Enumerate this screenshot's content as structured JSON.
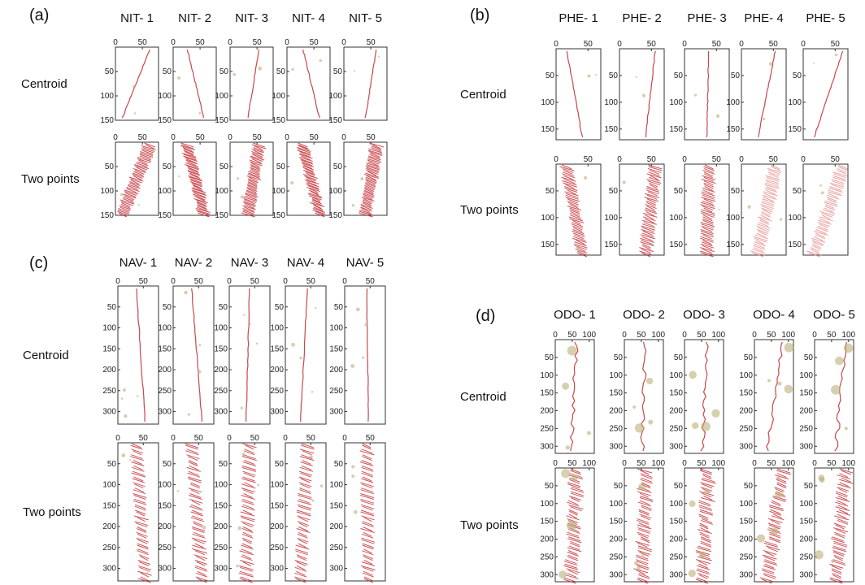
{
  "groups": [
    {
      "id": "a",
      "label": "(a)",
      "columns": [
        "NIT- 1",
        "NIT- 2",
        "NIT- 3",
        "NIT- 4",
        "NIT- 5"
      ],
      "rows": [
        "Centroid",
        "Two points"
      ],
      "x_ticks": [
        "0",
        "50"
      ],
      "y_ticks": [
        "50",
        "100",
        "150"
      ]
    },
    {
      "id": "b",
      "label": "(b)",
      "columns": [
        "PHE- 1",
        "PHE- 2",
        "PHE- 3",
        "PHE- 4",
        "PHE- 5"
      ],
      "rows": [
        "Centroid",
        "Two points"
      ],
      "x_ticks": [
        "0",
        "50"
      ],
      "y_ticks": [
        "50",
        "100",
        "150"
      ]
    },
    {
      "id": "c",
      "label": "(c)",
      "columns": [
        "NAV- 1",
        "NAV- 2",
        "NAV- 3",
        "NAV- 4",
        "NAV- 5"
      ],
      "rows": [
        "Centroid",
        "Two points"
      ],
      "x_ticks": [
        "0",
        "50"
      ],
      "y_ticks": [
        "50",
        "100",
        "150",
        "200",
        "250",
        "300"
      ]
    },
    {
      "id": "d",
      "label": "(d)",
      "columns": [
        "ODO- 1",
        "ODO- 2",
        "ODO- 3",
        "ODO- 4",
        "ODO- 5"
      ],
      "rows": [
        "Centroid",
        "Two points"
      ],
      "x_ticks": [
        "0",
        "50",
        "100"
      ],
      "y_ticks": [
        "50",
        "100",
        "150",
        "200",
        "250",
        "300"
      ]
    }
  ],
  "colors": {
    "track": "#c0262d",
    "track_light": "#e58a8a",
    "debris": "#b9b07a",
    "frame": "#333333"
  }
}
